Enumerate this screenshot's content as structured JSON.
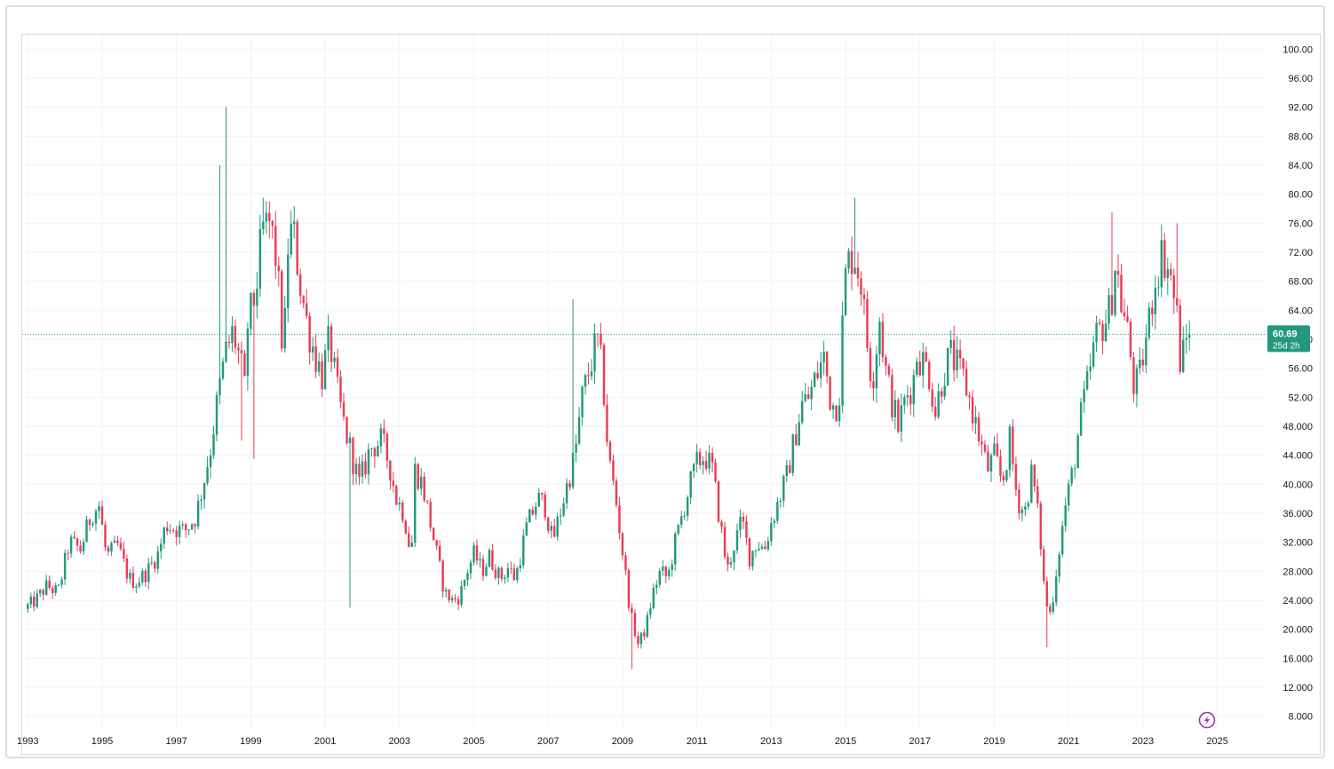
{
  "chart_data": {
    "type": "candlestick",
    "instrument": "",
    "y_axis": {
      "ticks": [
        "100.00",
        "96.00",
        "92.00",
        "88.00",
        "84.00",
        "80.00",
        "76.00",
        "72.00",
        "68.00",
        "64.00",
        "60.00",
        "56.00",
        "52.00",
        "48.000",
        "44.000",
        "40.000",
        "36.000",
        "32.000",
        "28.000",
        "24.000",
        "20.000",
        "16.000",
        "12.000",
        "8.000"
      ],
      "ylim": [
        6,
        102
      ]
    },
    "x_axis": {
      "ticks": [
        "1993",
        "1995",
        "1997",
        "1999",
        "2001",
        "2003",
        "2005",
        "2007",
        "2009",
        "2011",
        "2013",
        "2015",
        "2017",
        "2019",
        "2021",
        "2023",
        "2025"
      ],
      "xlim": [
        1992.85,
        2026.3
      ]
    },
    "current_price": {
      "value": 60.69,
      "label": "60.69",
      "countdown": "25d 2h",
      "color": "#22997f"
    },
    "colors": {
      "up": "#22997f",
      "down": "#ea3d55",
      "grid": "#f0f2f5",
      "axis_text": "#131722",
      "price_line": "#22997f"
    },
    "trend_points": [
      [
        1993.0,
        22.8
      ],
      [
        1993.3,
        24.0
      ],
      [
        1993.6,
        26.0
      ],
      [
        1993.9,
        25.0
      ],
      [
        1994.2,
        32.0
      ],
      [
        1994.5,
        31.0
      ],
      [
        1994.8,
        36.0
      ],
      [
        1995.0,
        37.0
      ],
      [
        1995.2,
        30.0
      ],
      [
        1995.5,
        31.5
      ],
      [
        1995.8,
        27.0
      ],
      [
        1996.0,
        26.5
      ],
      [
        1996.3,
        28.0
      ],
      [
        1996.6,
        30.5
      ],
      [
        1996.8,
        34.5
      ],
      [
        1997.0,
        34.0
      ],
      [
        1997.3,
        33.5
      ],
      [
        1997.6,
        35.5
      ],
      [
        1997.8,
        40.0
      ],
      [
        1998.0,
        45.0
      ],
      [
        1998.2,
        52.0
      ],
      [
        1998.4,
        58.0
      ],
      [
        1998.6,
        61.0
      ],
      [
        1998.8,
        57.0
      ],
      [
        1998.95,
        52.0
      ],
      [
        1999.0,
        62.0
      ],
      [
        1999.2,
        66.0
      ],
      [
        1999.4,
        75.0
      ],
      [
        1999.6,
        76.0
      ],
      [
        1999.8,
        70.0
      ],
      [
        1999.9,
        60.0
      ],
      [
        2000.0,
        62.0
      ],
      [
        2000.1,
        75.0
      ],
      [
        2000.25,
        74.0
      ],
      [
        2000.4,
        68.0
      ],
      [
        2000.6,
        62.0
      ],
      [
        2000.8,
        58.0
      ],
      [
        2001.0,
        55.0
      ],
      [
        2001.2,
        60.0
      ],
      [
        2001.4,
        53.0
      ],
      [
        2001.6,
        48.0
      ],
      [
        2001.8,
        44.0
      ],
      [
        2002.0,
        40.0
      ],
      [
        2002.3,
        45.0
      ],
      [
        2002.6,
        46.0
      ],
      [
        2002.8,
        43.0
      ],
      [
        2003.0,
        38.0
      ],
      [
        2003.2,
        36.0
      ],
      [
        2003.4,
        30.0
      ],
      [
        2003.5,
        42.0
      ],
      [
        2003.7,
        40.0
      ],
      [
        2003.9,
        35.0
      ],
      [
        2004.1,
        30.0
      ],
      [
        2004.3,
        25.0
      ],
      [
        2004.5,
        24.0
      ],
      [
        2004.7,
        24.5
      ],
      [
        2004.9,
        28.0
      ],
      [
        2005.1,
        30.5
      ],
      [
        2005.3,
        28.0
      ],
      [
        2005.5,
        30.0
      ],
      [
        2005.8,
        27.0
      ],
      [
        2006.0,
        28.5
      ],
      [
        2006.2,
        27.0
      ],
      [
        2006.5,
        34.0
      ],
      [
        2006.8,
        38.0
      ],
      [
        2007.0,
        37.0
      ],
      [
        2007.2,
        32.0
      ],
      [
        2007.5,
        38.0
      ],
      [
        2007.8,
        44.0
      ],
      [
        2008.0,
        52.0
      ],
      [
        2008.2,
        56.0
      ],
      [
        2008.4,
        60.0
      ],
      [
        2008.55,
        55.0
      ],
      [
        2008.7,
        44.0
      ],
      [
        2008.9,
        38.0
      ],
      [
        2009.1,
        30.0
      ],
      [
        2009.3,
        22.0
      ],
      [
        2009.5,
        18.0
      ],
      [
        2009.7,
        20.0
      ],
      [
        2009.9,
        25.0
      ],
      [
        2010.1,
        28.0
      ],
      [
        2010.3,
        27.0
      ],
      [
        2010.5,
        32.0
      ],
      [
        2010.7,
        36.0
      ],
      [
        2010.9,
        40.0
      ],
      [
        2011.1,
        43.0
      ],
      [
        2011.3,
        44.0
      ],
      [
        2011.5,
        42.0
      ],
      [
        2011.7,
        35.0
      ],
      [
        2011.9,
        28.0
      ],
      [
        2012.1,
        32.0
      ],
      [
        2012.3,
        35.0
      ],
      [
        2012.5,
        30.0
      ],
      [
        2012.7,
        32.0
      ],
      [
        2012.9,
        31.0
      ],
      [
        2013.1,
        35.0
      ],
      [
        2013.3,
        38.0
      ],
      [
        2013.5,
        41.0
      ],
      [
        2013.7,
        46.0
      ],
      [
        2013.9,
        51.0
      ],
      [
        2014.1,
        52.0
      ],
      [
        2014.3,
        55.0
      ],
      [
        2014.5,
        57.5
      ],
      [
        2014.7,
        51.0
      ],
      [
        2014.9,
        51.0
      ],
      [
        2015.0,
        62.0
      ],
      [
        2015.1,
        70.0
      ],
      [
        2015.3,
        72.0
      ],
      [
        2015.5,
        68.0
      ],
      [
        2015.65,
        60.0
      ],
      [
        2015.8,
        54.0
      ],
      [
        2016.0,
        63.0
      ],
      [
        2016.15,
        56.0
      ],
      [
        2016.3,
        52.0
      ],
      [
        2016.5,
        48.0
      ],
      [
        2016.7,
        52.0
      ],
      [
        2016.9,
        54.0
      ],
      [
        2017.0,
        58.0
      ],
      [
        2017.3,
        56.0
      ],
      [
        2017.5,
        50.0
      ],
      [
        2017.7,
        55.0
      ],
      [
        2017.9,
        58.0
      ],
      [
        2018.1,
        56.0
      ],
      [
        2018.3,
        54.0
      ],
      [
        2018.5,
        50.0
      ],
      [
        2018.7,
        46.0
      ],
      [
        2018.9,
        42.0
      ],
      [
        2019.1,
        44.0
      ],
      [
        2019.3,
        40.0
      ],
      [
        2019.5,
        46.0
      ],
      [
        2019.7,
        38.0
      ],
      [
        2019.9,
        36.0
      ],
      [
        2020.1,
        42.0
      ],
      [
        2020.3,
        34.0
      ],
      [
        2020.45,
        24.0
      ],
      [
        2020.6,
        22.0
      ],
      [
        2020.8,
        30.0
      ],
      [
        2021.0,
        37.0
      ],
      [
        2021.2,
        42.0
      ],
      [
        2021.4,
        49.0
      ],
      [
        2021.6,
        54.0
      ],
      [
        2021.8,
        60.0
      ],
      [
        2022.0,
        62.0
      ],
      [
        2022.2,
        64.0
      ],
      [
        2022.35,
        71.0
      ],
      [
        2022.5,
        65.0
      ],
      [
        2022.7,
        60.0
      ],
      [
        2022.85,
        53.0
      ],
      [
        2023.0,
        55.0
      ],
      [
        2023.2,
        61.0
      ],
      [
        2023.4,
        68.0
      ],
      [
        2023.6,
        72.0
      ],
      [
        2023.75,
        70.0
      ],
      [
        2023.85,
        68.0
      ],
      [
        2024.0,
        63.0
      ],
      [
        2024.1,
        56.0
      ],
      [
        2024.2,
        59.0
      ],
      [
        2024.3,
        60.69
      ]
    ],
    "spikes": [
      [
        1998.2,
        84.0
      ],
      [
        1998.3,
        92.0
      ],
      [
        1999.05,
        43.5
      ],
      [
        1998.75,
        46.0
      ],
      [
        1999.3,
        79.5
      ],
      [
        1999.5,
        79.0
      ],
      [
        2015.25,
        79.5
      ],
      [
        2022.2,
        77.5
      ],
      [
        2023.9,
        76.0
      ],
      [
        2007.7,
        65.5
      ],
      [
        2020.4,
        17.5
      ],
      [
        2001.7,
        23.0
      ],
      [
        2009.25,
        14.5
      ]
    ]
  },
  "toolbar": {
    "icon": "lightning-icon"
  }
}
